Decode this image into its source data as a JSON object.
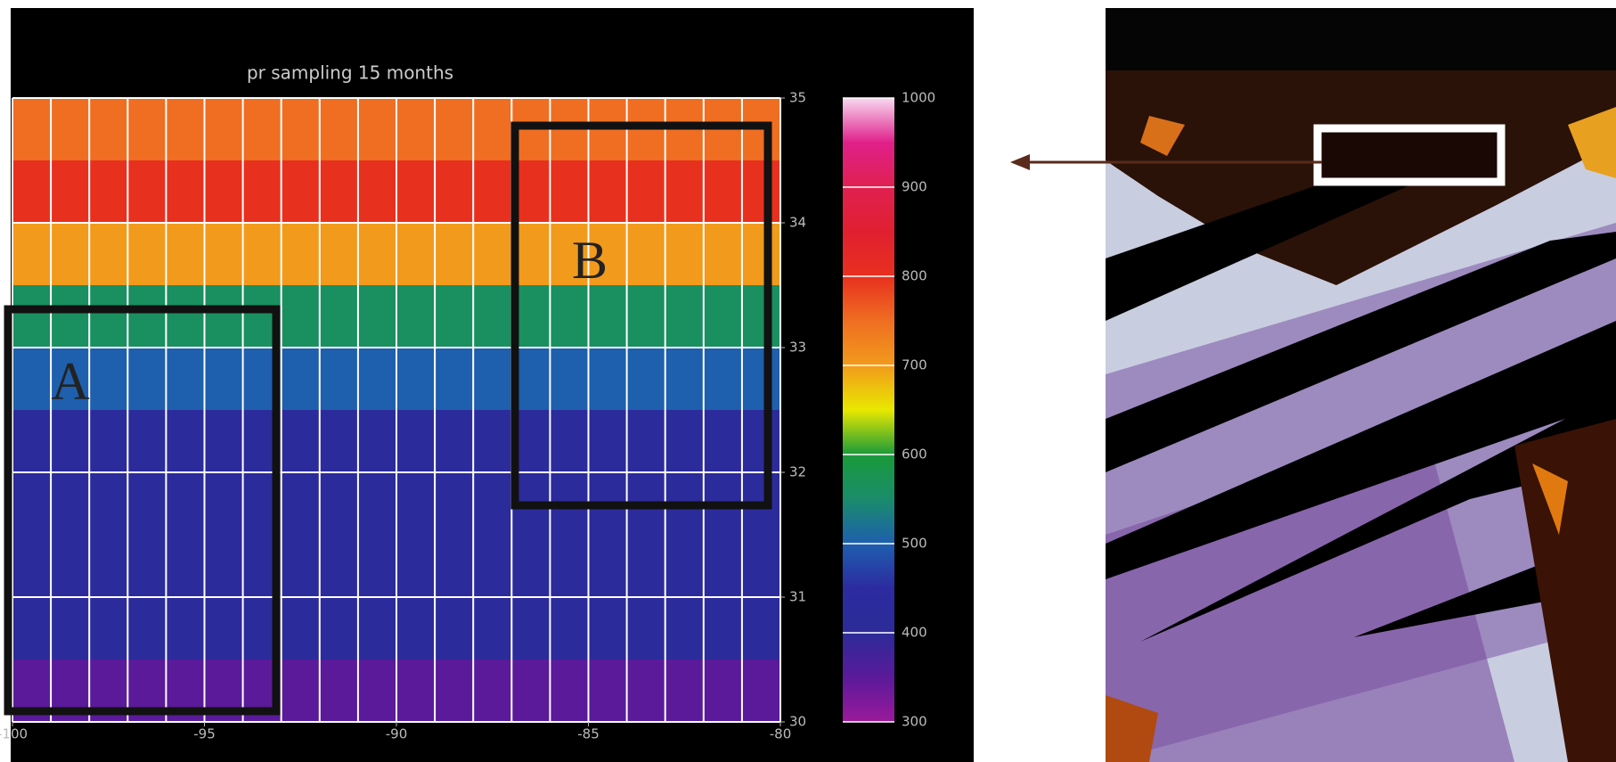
{
  "chart_data": {
    "type": "heatmap",
    "title": "pr sampling 15 months",
    "x_edges": [
      -100,
      -99,
      -98,
      -97,
      -96,
      -95,
      -94,
      -93,
      -92,
      -91,
      -90,
      -89,
      -88,
      -87,
      -86,
      -85,
      -84,
      -83,
      -82,
      -81,
      -80
    ],
    "y_edges": [
      30,
      30.5,
      32.5,
      33,
      33.5,
      34,
      34.5,
      35
    ],
    "values": [
      350,
      420,
      500,
      560,
      700,
      800,
      750
    ],
    "xlim": [
      -100,
      -80
    ],
    "xticks": [
      -100,
      -95,
      -90,
      -85,
      -80
    ],
    "ylim": [
      30,
      35
    ],
    "yticks": [
      30,
      31,
      32,
      33,
      34,
      35
    ],
    "clim": [
      300,
      1000
    ],
    "cticks": [
      300,
      400,
      500,
      600,
      700,
      800,
      900,
      1000
    ],
    "colorscale": [
      "#9a1a9a",
      "#5a1a9a",
      "#2c2b98",
      "#2c2ba0",
      "#1e5fae",
      "#1a8c6a",
      "#1a9a3a",
      "#e8e800",
      "#f29a1c",
      "#ef6e22",
      "#e8301f",
      "#e02030",
      "#e02050",
      "#e0208a",
      "#f8d8f0"
    ],
    "grid": true,
    "annotations": [
      "A",
      "B"
    ]
  }
}
